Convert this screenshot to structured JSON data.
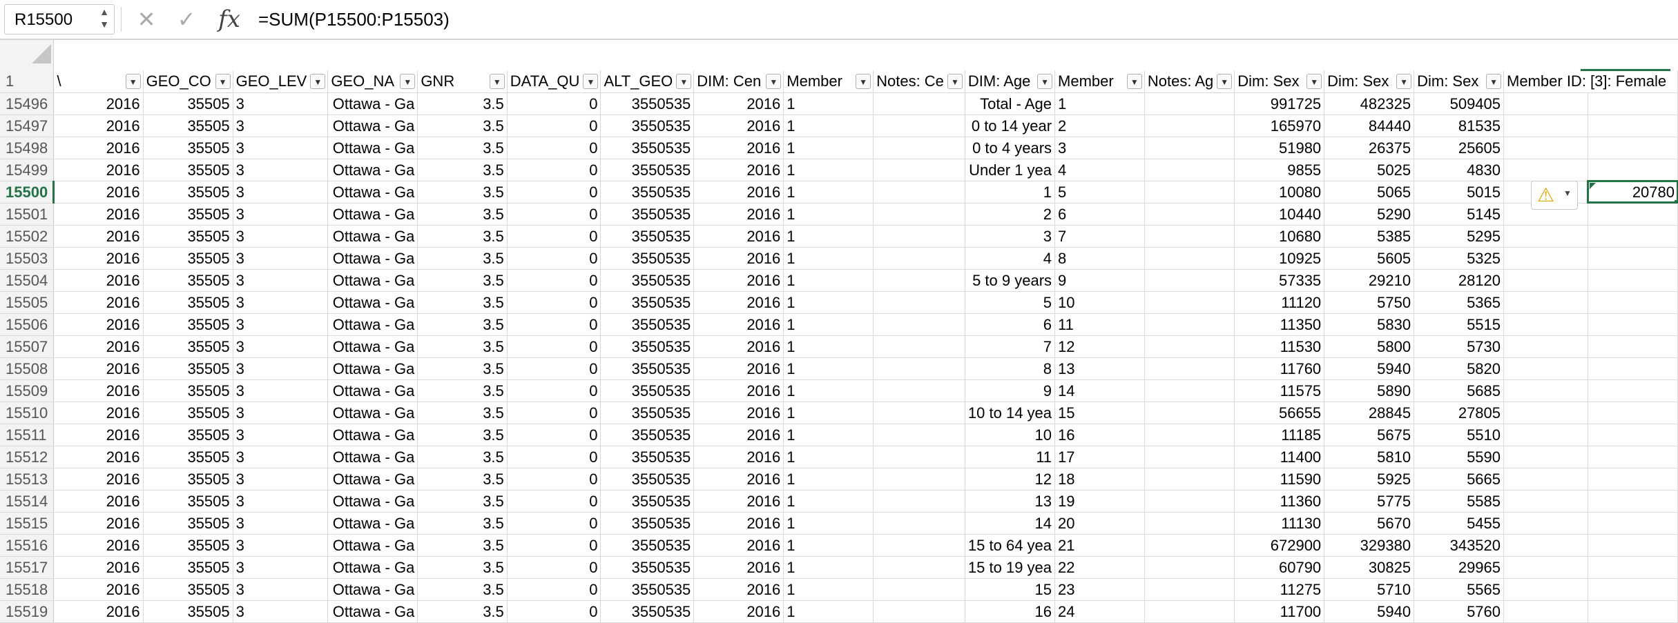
{
  "formula_bar": {
    "name_box": "R15500",
    "cancel_icon": "✕",
    "enter_icon": "✓",
    "fx_label": "fx",
    "formula": "=SUM(P15500:P15503)"
  },
  "sheet": {
    "header_row_number": "1",
    "active_row": "15500",
    "headers": [
      "\\",
      "GEO_CODE",
      "GEO_LEVEL",
      "GEO_NAME",
      "GNR",
      "DATA_QUALITY",
      "ALT_GEO_CODE",
      "DIM: Census",
      "Member ID",
      "Notes: Census",
      "DIM: Age",
      "Member ID",
      "Notes: Age",
      "Dim: Sex",
      "Dim: Sex",
      "Dim: Sex",
      "Member ID: [3]: Female"
    ],
    "header_display": [
      "\\",
      "GEO_CO",
      "GEO_LEV",
      "GEO_NA",
      "GNR",
      "DATA_QU",
      "ALT_GEO",
      "DIM: Cen",
      "Member",
      "Notes: Ce",
      "DIM: Age",
      "Member",
      "Notes: Ag",
      "Dim: Sex",
      "Dim: Sex",
      "Dim: Sex",
      "Member ID: [3]: Female"
    ],
    "rows": [
      {
        "rn": "15496",
        "c": [
          "2016",
          "35505",
          "3",
          "Ottawa - Ga",
          "3.5",
          "0",
          "3550535",
          "2016",
          "1",
          "",
          "Total - Age",
          "1",
          "",
          "991725",
          "482325",
          "509405",
          "",
          ""
        ]
      },
      {
        "rn": "15497",
        "c": [
          "2016",
          "35505",
          "3",
          "Ottawa - Ga",
          "3.5",
          "0",
          "3550535",
          "2016",
          "1",
          "",
          "0 to 14 year",
          "2",
          "",
          "165970",
          "84440",
          "81535",
          "",
          ""
        ]
      },
      {
        "rn": "15498",
        "c": [
          "2016",
          "35505",
          "3",
          "Ottawa - Ga",
          "3.5",
          "0",
          "3550535",
          "2016",
          "1",
          "",
          "0 to 4 years",
          "3",
          "",
          "51980",
          "26375",
          "25605",
          "",
          ""
        ]
      },
      {
        "rn": "15499",
        "c": [
          "2016",
          "35505",
          "3",
          "Ottawa - Ga",
          "3.5",
          "0",
          "3550535",
          "2016",
          "1",
          "",
          "Under 1 yea",
          "4",
          "",
          "9855",
          "5025",
          "4830",
          "",
          ""
        ]
      },
      {
        "rn": "15500",
        "c": [
          "2016",
          "35505",
          "3",
          "Ottawa - Ga",
          "3.5",
          "0",
          "3550535",
          "2016",
          "1",
          "",
          "1",
          "5",
          "",
          "10080",
          "5065",
          "5015",
          "",
          "20780"
        ]
      },
      {
        "rn": "15501",
        "c": [
          "2016",
          "35505",
          "3",
          "Ottawa - Ga",
          "3.5",
          "0",
          "3550535",
          "2016",
          "1",
          "",
          "2",
          "6",
          "",
          "10440",
          "5290",
          "5145",
          "",
          ""
        ]
      },
      {
        "rn": "15502",
        "c": [
          "2016",
          "35505",
          "3",
          "Ottawa - Ga",
          "3.5",
          "0",
          "3550535",
          "2016",
          "1",
          "",
          "3",
          "7",
          "",
          "10680",
          "5385",
          "5295",
          "",
          ""
        ]
      },
      {
        "rn": "15503",
        "c": [
          "2016",
          "35505",
          "3",
          "Ottawa - Ga",
          "3.5",
          "0",
          "3550535",
          "2016",
          "1",
          "",
          "4",
          "8",
          "",
          "10925",
          "5605",
          "5325",
          "",
          ""
        ]
      },
      {
        "rn": "15504",
        "c": [
          "2016",
          "35505",
          "3",
          "Ottawa - Ga",
          "3.5",
          "0",
          "3550535",
          "2016",
          "1",
          "",
          "5 to 9 years",
          "9",
          "",
          "57335",
          "29210",
          "28120",
          "",
          ""
        ]
      },
      {
        "rn": "15505",
        "c": [
          "2016",
          "35505",
          "3",
          "Ottawa - Ga",
          "3.5",
          "0",
          "3550535",
          "2016",
          "1",
          "",
          "5",
          "10",
          "",
          "11120",
          "5750",
          "5365",
          "",
          ""
        ]
      },
      {
        "rn": "15506",
        "c": [
          "2016",
          "35505",
          "3",
          "Ottawa - Ga",
          "3.5",
          "0",
          "3550535",
          "2016",
          "1",
          "",
          "6",
          "11",
          "",
          "11350",
          "5830",
          "5515",
          "",
          ""
        ]
      },
      {
        "rn": "15507",
        "c": [
          "2016",
          "35505",
          "3",
          "Ottawa - Ga",
          "3.5",
          "0",
          "3550535",
          "2016",
          "1",
          "",
          "7",
          "12",
          "",
          "11530",
          "5800",
          "5730",
          "",
          ""
        ]
      },
      {
        "rn": "15508",
        "c": [
          "2016",
          "35505",
          "3",
          "Ottawa - Ga",
          "3.5",
          "0",
          "3550535",
          "2016",
          "1",
          "",
          "8",
          "13",
          "",
          "11760",
          "5940",
          "5820",
          "",
          ""
        ]
      },
      {
        "rn": "15509",
        "c": [
          "2016",
          "35505",
          "3",
          "Ottawa - Ga",
          "3.5",
          "0",
          "3550535",
          "2016",
          "1",
          "",
          "9",
          "14",
          "",
          "11575",
          "5890",
          "5685",
          "",
          ""
        ]
      },
      {
        "rn": "15510",
        "c": [
          "2016",
          "35505",
          "3",
          "Ottawa - Ga",
          "3.5",
          "0",
          "3550535",
          "2016",
          "1",
          "",
          "10 to 14 yea",
          "15",
          "",
          "56655",
          "28845",
          "27805",
          "",
          ""
        ]
      },
      {
        "rn": "15511",
        "c": [
          "2016",
          "35505",
          "3",
          "Ottawa - Ga",
          "3.5",
          "0",
          "3550535",
          "2016",
          "1",
          "",
          "10",
          "16",
          "",
          "11185",
          "5675",
          "5510",
          "",
          ""
        ]
      },
      {
        "rn": "15512",
        "c": [
          "2016",
          "35505",
          "3",
          "Ottawa - Ga",
          "3.5",
          "0",
          "3550535",
          "2016",
          "1",
          "",
          "11",
          "17",
          "",
          "11400",
          "5810",
          "5590",
          "",
          ""
        ]
      },
      {
        "rn": "15513",
        "c": [
          "2016",
          "35505",
          "3",
          "Ottawa - Ga",
          "3.5",
          "0",
          "3550535",
          "2016",
          "1",
          "",
          "12",
          "18",
          "",
          "11590",
          "5925",
          "5665",
          "",
          ""
        ]
      },
      {
        "rn": "15514",
        "c": [
          "2016",
          "35505",
          "3",
          "Ottawa - Ga",
          "3.5",
          "0",
          "3550535",
          "2016",
          "1",
          "",
          "13",
          "19",
          "",
          "11360",
          "5775",
          "5585",
          "",
          ""
        ]
      },
      {
        "rn": "15515",
        "c": [
          "2016",
          "35505",
          "3",
          "Ottawa - Ga",
          "3.5",
          "0",
          "3550535",
          "2016",
          "1",
          "",
          "14",
          "20",
          "",
          "11130",
          "5670",
          "5455",
          "",
          ""
        ]
      },
      {
        "rn": "15516",
        "c": [
          "2016",
          "35505",
          "3",
          "Ottawa - Ga",
          "3.5",
          "0",
          "3550535",
          "2016",
          "1",
          "",
          "15 to 64 yea",
          "21",
          "",
          "672900",
          "329380",
          "343520",
          "",
          ""
        ]
      },
      {
        "rn": "15517",
        "c": [
          "2016",
          "35505",
          "3",
          "Ottawa - Ga",
          "3.5",
          "0",
          "3550535",
          "2016",
          "1",
          "",
          "15 to 19 yea",
          "22",
          "",
          "60790",
          "30825",
          "29965",
          "",
          ""
        ]
      },
      {
        "rn": "15518",
        "c": [
          "2016",
          "35505",
          "3",
          "Ottawa - Ga",
          "3.5",
          "0",
          "3550535",
          "2016",
          "1",
          "",
          "15",
          "23",
          "",
          "11275",
          "5710",
          "5565",
          "",
          ""
        ]
      },
      {
        "rn": "15519",
        "c": [
          "2016",
          "35505",
          "3",
          "Ottawa - Ga",
          "3.5",
          "0",
          "3550535",
          "2016",
          "1",
          "",
          "16",
          "24",
          "",
          "11700",
          "5940",
          "5760",
          "",
          ""
        ]
      }
    ]
  },
  "colors": {
    "accent": "#217346",
    "header_bg": "#f3f3f3",
    "gridline": "#d9d9d9",
    "warning": "#e0a800"
  }
}
